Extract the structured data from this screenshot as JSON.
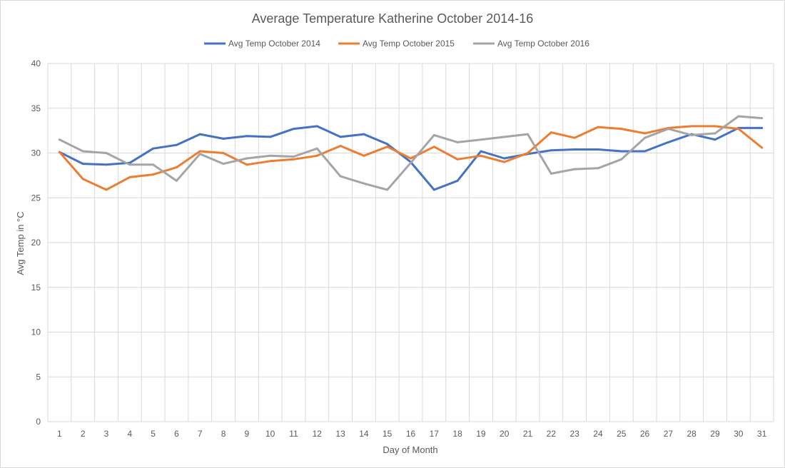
{
  "chart_data": {
    "type": "line",
    "title": "Average Temperature Katherine October 2014-16",
    "xlabel": "Day of Month",
    "ylabel": "Avg Temp in °C",
    "ylim": [
      0,
      40
    ],
    "y_ticks": [
      "0",
      "5",
      "10",
      "15",
      "20",
      "25",
      "30",
      "35",
      "40"
    ],
    "categories": [
      "1",
      "2",
      "3",
      "4",
      "5",
      "6",
      "7",
      "8",
      "9",
      "10",
      "11",
      "12",
      "13",
      "14",
      "15",
      "16",
      "17",
      "18",
      "19",
      "20",
      "21",
      "22",
      "23",
      "24",
      "25",
      "26",
      "27",
      "28",
      "29",
      "30",
      "31"
    ],
    "grid": true,
    "legend_position": "top",
    "series": [
      {
        "name": "Avg Temp October 2014",
        "color": "#4472c4",
        "values": [
          30.1,
          28.8,
          28.7,
          28.9,
          30.5,
          30.9,
          32.1,
          31.6,
          31.9,
          31.8,
          32.7,
          33.0,
          31.8,
          32.1,
          31.0,
          29.0,
          25.9,
          26.9,
          30.2,
          29.4,
          29.9,
          30.3,
          30.4,
          30.4,
          30.2,
          30.2,
          31.2,
          32.1,
          31.5,
          32.8,
          32.8
        ]
      },
      {
        "name": "Avg Temp October 2015",
        "color": "#ed7d31",
        "values": [
          30.1,
          27.1,
          25.9,
          27.3,
          27.6,
          28.4,
          30.2,
          30.0,
          28.7,
          29.1,
          29.3,
          29.7,
          30.8,
          29.7,
          30.7,
          29.4,
          30.7,
          29.3,
          29.7,
          29.0,
          30.0,
          32.3,
          31.7,
          32.9,
          32.7,
          32.2,
          32.8,
          33.0,
          33.0,
          32.7,
          30.6
        ]
      },
      {
        "name": "Avg Temp October 2016",
        "color": "#a5a5a5",
        "values": [
          31.5,
          30.2,
          30.0,
          28.7,
          28.7,
          26.9,
          29.9,
          28.8,
          29.4,
          29.7,
          29.6,
          30.5,
          27.4,
          26.6,
          25.9,
          28.9,
          32.0,
          31.2,
          31.5,
          31.8,
          32.1,
          27.7,
          28.2,
          28.3,
          29.3,
          31.7,
          32.7,
          32.0,
          32.2,
          34.1,
          33.9
        ]
      }
    ]
  }
}
